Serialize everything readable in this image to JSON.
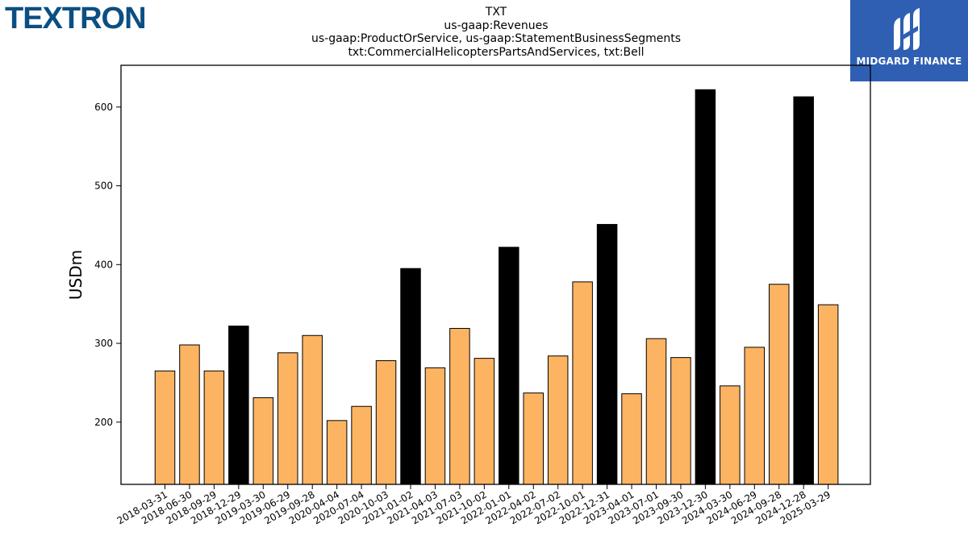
{
  "branding": {
    "company_logo": "TEXTRON",
    "partner_logo": "MIDGARD FINANCE",
    "partner_icon": "midgard-logo-icon"
  },
  "header": {
    "title_lines": [
      "TXT",
      "us-gaap:Revenues",
      "us-gaap:ProductOrService, us-gaap:StatementBusinessSegments",
      "txt:CommercialHelicoptersPartsAndServices, txt:Bell"
    ]
  },
  "chart_data": {
    "type": "bar",
    "title": "TXT us-gaap:Revenues us-gaap:ProductOrService, us-gaap:StatementBusinessSegments txt:CommercialHelicoptersPartsAndServices, txt:Bell",
    "xlabel": "",
    "ylabel": "USDm",
    "ylim": [
      121,
      653
    ],
    "yticks": [
      200,
      300,
      400,
      500,
      600
    ],
    "grid": false,
    "colors": {
      "quarter": "#fdb462",
      "year_end": "#000000",
      "edge": "#000000"
    },
    "categories": [
      "2018-03-31",
      "2018-06-30",
      "2018-09-29",
      "2018-12-29",
      "2019-03-30",
      "2019-06-29",
      "2019-09-28",
      "2020-04-04",
      "2020-07-04",
      "2020-10-03",
      "2021-01-02",
      "2021-04-03",
      "2021-07-03",
      "2021-10-02",
      "2022-01-01",
      "2022-04-02",
      "2022-07-02",
      "2022-10-01",
      "2022-12-31",
      "2023-04-01",
      "2023-07-01",
      "2023-09-30",
      "2023-12-30",
      "2024-03-30",
      "2024-06-29",
      "2024-09-28",
      "2024-12-28",
      "2025-03-29"
    ],
    "values": [
      265,
      298,
      265,
      322,
      231,
      288,
      310,
      202,
      220,
      278,
      395,
      269,
      319,
      281,
      422,
      237,
      284,
      378,
      451,
      236,
      306,
      282,
      622,
      246,
      295,
      375,
      613,
      349
    ],
    "year_end": [
      false,
      false,
      false,
      true,
      false,
      false,
      false,
      false,
      false,
      false,
      true,
      false,
      false,
      false,
      true,
      false,
      false,
      false,
      true,
      false,
      false,
      false,
      true,
      false,
      false,
      false,
      true,
      false
    ]
  }
}
